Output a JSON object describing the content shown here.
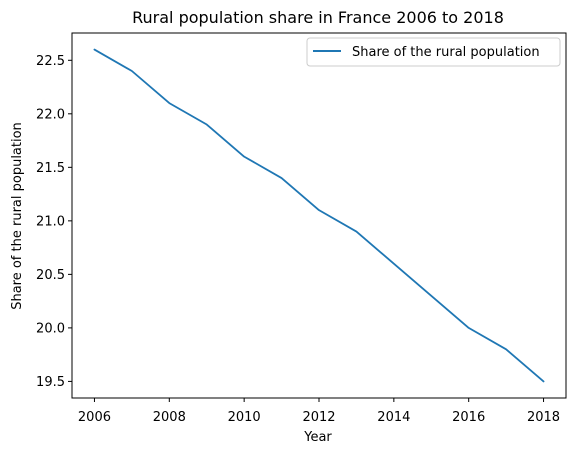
{
  "chart_data": {
    "type": "line",
    "title": "Rural population share in France 2006 to 2018",
    "xlabel": "Year",
    "ylabel": "Share of the rural population",
    "x": [
      2006,
      2007,
      2008,
      2009,
      2010,
      2011,
      2012,
      2013,
      2014,
      2015,
      2016,
      2017,
      2018
    ],
    "series": [
      {
        "name": "Share of the rural population",
        "color": "#1f77b4",
        "values": [
          22.6,
          22.4,
          22.1,
          21.9,
          21.6,
          21.4,
          21.1,
          20.9,
          20.6,
          20.3,
          20.0,
          19.8,
          19.5
        ]
      }
    ],
    "xlim": [
      2005.4,
      2018.6
    ],
    "ylim": [
      19.345,
      22.755
    ],
    "xticks": [
      "2006",
      "2008",
      "2010",
      "2012",
      "2014",
      "2016",
      "2018"
    ],
    "yticks": [
      "19.5",
      "20.0",
      "20.5",
      "21.0",
      "21.5",
      "22.0",
      "22.5"
    ],
    "legend_position": "top-right",
    "grid": false
  }
}
